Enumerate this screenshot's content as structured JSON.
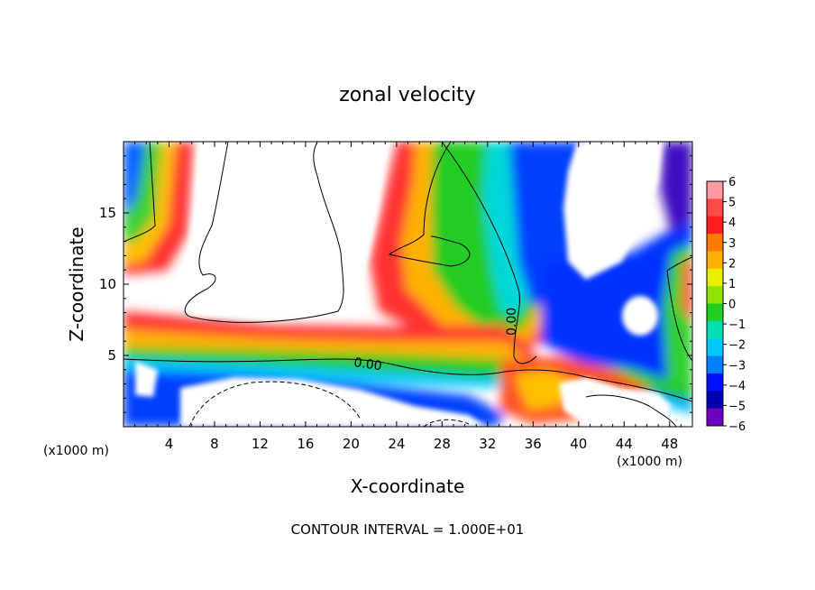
{
  "chart_data": {
    "type": "heatmap",
    "title": "zonal velocity",
    "xlabel": "X-coordinate",
    "ylabel": "Z-coordinate",
    "x_unit": "(x1000 m)",
    "y_unit": "(x1000 m)",
    "xlim": [
      0,
      50
    ],
    "ylim": [
      0,
      20
    ],
    "x_ticks": [
      4,
      8,
      12,
      16,
      20,
      24,
      28,
      32,
      36,
      40,
      44,
      48
    ],
    "y_ticks": [
      5,
      10,
      15
    ],
    "colorbar": {
      "levels": [
        6,
        5,
        4,
        3,
        2,
        1,
        0,
        -1,
        -2,
        -3,
        -4,
        -5,
        -6
      ],
      "labels": [
        "6",
        "5",
        "4",
        "3",
        "2",
        "1",
        "0",
        "−1",
        "−2",
        "−3",
        "−4",
        "−5",
        "−6"
      ],
      "colors": [
        "#ff9aa0",
        "#ff4a4a",
        "#ff1e1e",
        "#ff7a00",
        "#ffb000",
        "#e8f000",
        "#8ee600",
        "#20d020",
        "#00e0b0",
        "#00c8ff",
        "#0080ff",
        "#0010ff",
        "#0000b0",
        "#7000c0"
      ]
    },
    "contour_labels": [
      "0.00",
      "0.00"
    ],
    "note": "CONTOUR INTERVAL = 1.000E+01",
    "grid": false
  }
}
